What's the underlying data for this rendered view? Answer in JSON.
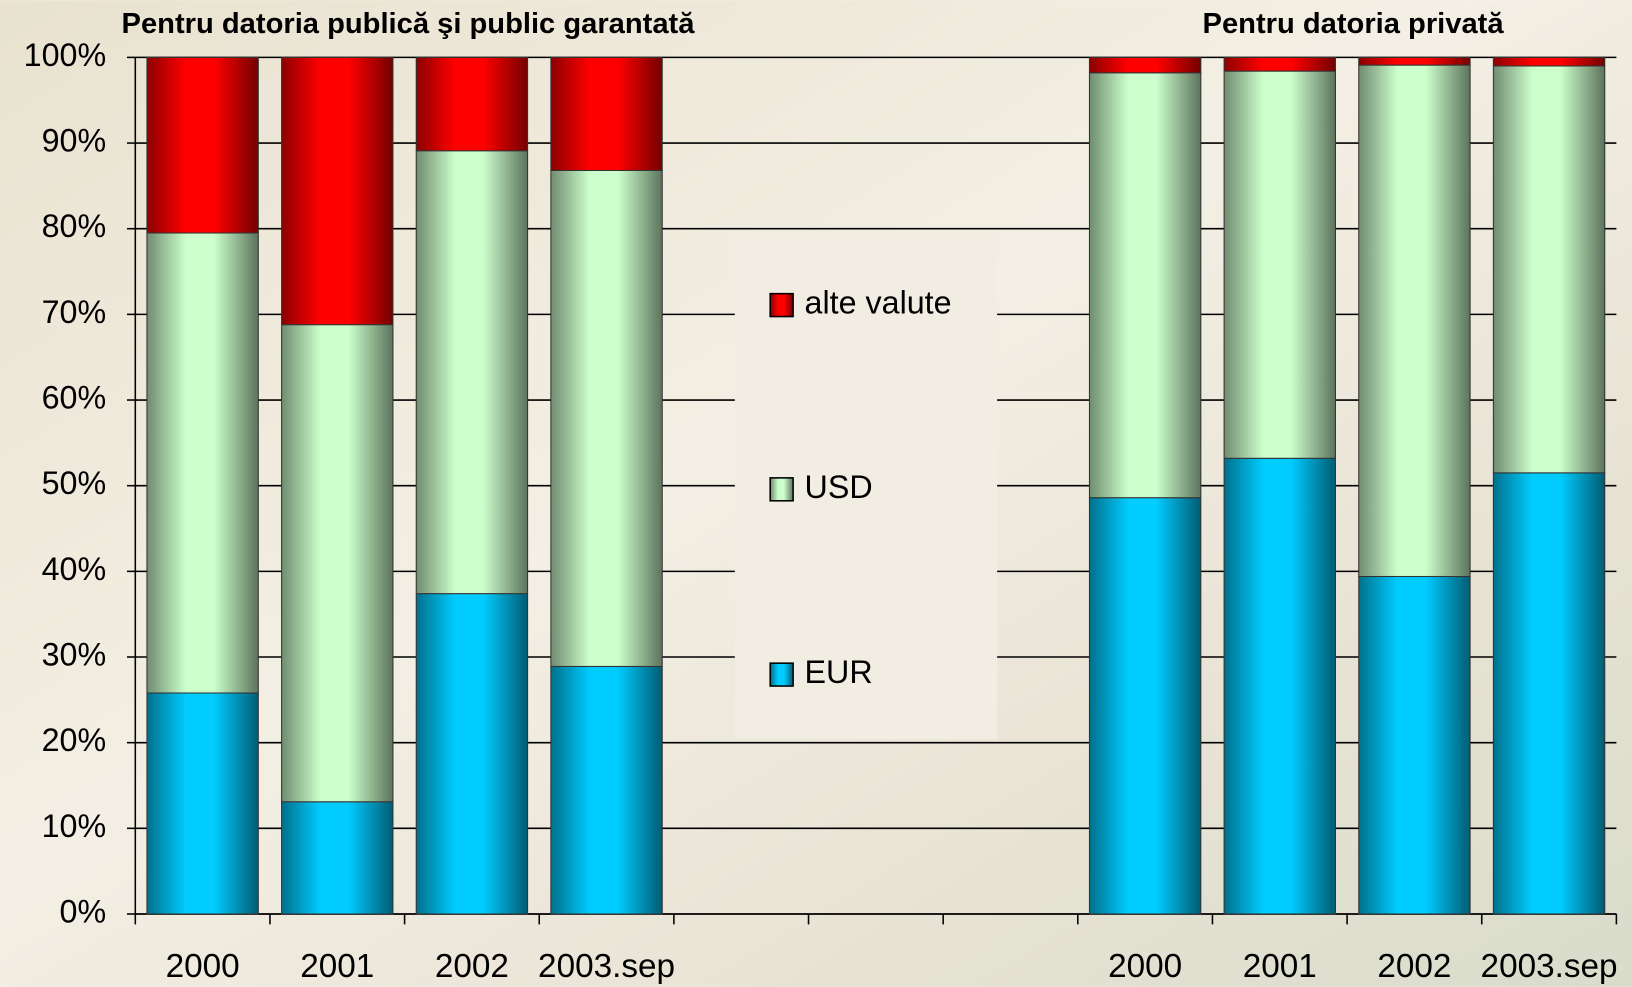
{
  "chart_data": {
    "type": "stacked_bar",
    "annotations": [
      "Pentru datoria publică şi public garantată",
      "Pentru datoria privată"
    ],
    "categories": [
      "2000",
      "2001",
      "2002",
      "2003.sep",
      null,
      null,
      null,
      "2000",
      "2001",
      "2002",
      "2003.sep"
    ],
    "series": [
      {
        "name": "EUR",
        "color": "#00ccff",
        "values": [
          25.8,
          13.1,
          37.4,
          28.9,
          null,
          null,
          null,
          48.6,
          53.2,
          39.4,
          51.5
        ]
      },
      {
        "name": "USD",
        "color": "#ccffcc",
        "values": [
          53.7,
          55.7,
          51.7,
          57.9,
          null,
          null,
          null,
          49.6,
          45.2,
          59.7,
          47.5
        ]
      },
      {
        "name": "alte valute",
        "color": "#ff0000",
        "values": [
          20.5,
          31.2,
          10.9,
          13.2,
          null,
          null,
          null,
          1.8,
          1.6,
          0.9,
          1.0
        ]
      }
    ],
    "ylim": [
      0,
      100
    ],
    "yticks": [
      {
        "value": 0,
        "label": "0%"
      },
      {
        "value": 10,
        "label": "10%"
      },
      {
        "value": 20,
        "label": "20%"
      },
      {
        "value": 30,
        "label": "30%"
      },
      {
        "value": 40,
        "label": "40%"
      },
      {
        "value": 50,
        "label": "50%"
      },
      {
        "value": 60,
        "label": "60%"
      },
      {
        "value": 70,
        "label": "70%"
      },
      {
        "value": 80,
        "label": "80%"
      },
      {
        "value": 90,
        "label": "90%"
      },
      {
        "value": 100,
        "label": "100%"
      }
    ],
    "grid": true
  }
}
